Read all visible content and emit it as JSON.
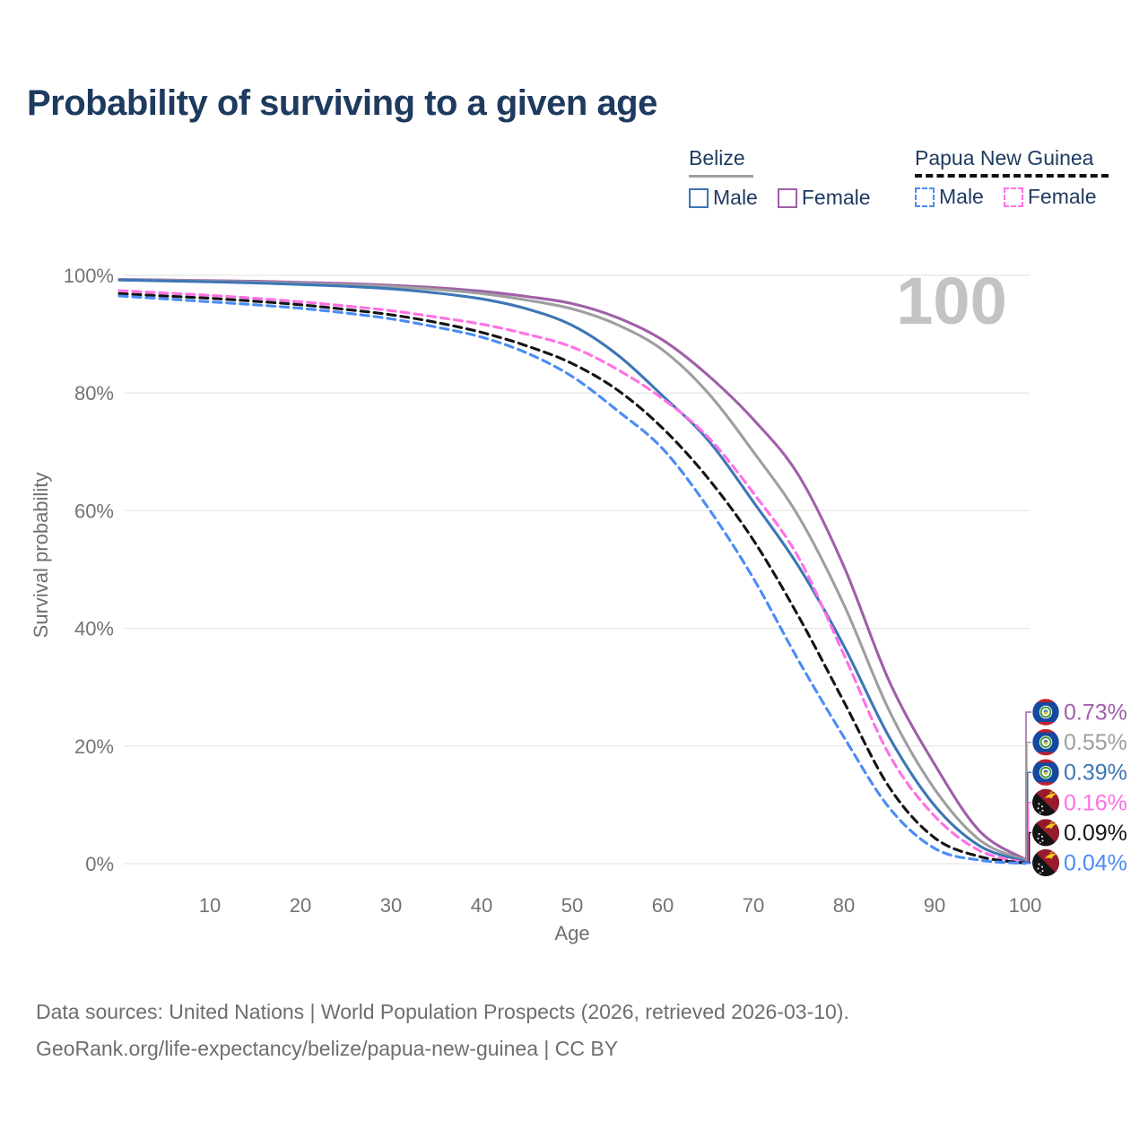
{
  "title": "Probability of surviving to a given age",
  "watermark": "100",
  "legend": {
    "belize": {
      "title": "Belize",
      "male": "Male",
      "female": "Female"
    },
    "png": {
      "title": "Papua New Guinea",
      "male": "Male",
      "female": "Female"
    }
  },
  "axes": {
    "x_label": "Age",
    "y_label": "Survival probability",
    "x_ticks": [
      10,
      20,
      30,
      40,
      50,
      60,
      70,
      80,
      90,
      100
    ],
    "y_ticks": [
      "0%",
      "20%",
      "40%",
      "60%",
      "80%",
      "100%"
    ]
  },
  "footer": {
    "line1": "Data sources: United Nations | World Population Prospects (2026, retrieved 2026-03-10).",
    "line2": "GeoRank.org/life-expectancy/belize/papua-new-guinea | CC BY"
  },
  "colors": {
    "title_text": "#1e3a5f",
    "tick_text": "#737373",
    "grid": "#e8e8e8",
    "watermark": "#c3c3c3",
    "belize_underline": "#9e9e9e",
    "png_underline": "#111111",
    "belize_male": "#3d76b5",
    "belize_female": "#a05fa8",
    "belize_total": "#9e9e9e",
    "png_male": "#4a8cf5",
    "png_female": "#ff70e5",
    "png_total": "#141414"
  },
  "chart_data": {
    "type": "line",
    "title": "Probability of surviving to a given age",
    "xlabel": "Age",
    "ylabel": "Survival probability",
    "xlim": [
      0,
      100
    ],
    "ylim": [
      0,
      100
    ],
    "grid": "horizontal",
    "legend_position": "top-right",
    "x": [
      0,
      5,
      10,
      15,
      20,
      25,
      30,
      35,
      40,
      45,
      50,
      55,
      60,
      65,
      70,
      75,
      80,
      85,
      90,
      95,
      100
    ],
    "series": [
      {
        "name": "Belize Female",
        "country": "Belize",
        "color": "#a05fa8",
        "dash": false,
        "flag": "belize",
        "end_label": "0.73%",
        "end_value": 0.73,
        "values": [
          99.3,
          99.2,
          99.1,
          99.0,
          98.8,
          98.6,
          98.3,
          97.9,
          97.3,
          96.4,
          95.2,
          92.8,
          89.0,
          83.0,
          75.5,
          66.0,
          50.5,
          31.0,
          16.9,
          5.5,
          0.73
        ]
      },
      {
        "name": "Belize (both sexes)",
        "country": "Belize",
        "color": "#9e9e9e",
        "dash": false,
        "flag": "belize",
        "end_label": "0.55%",
        "end_value": 0.55,
        "values": [
          99.25,
          99.15,
          99.0,
          98.85,
          98.65,
          98.4,
          98.1,
          97.6,
          96.9,
          95.8,
          94.3,
          91.6,
          87.3,
          80.0,
          70.0,
          59.0,
          44.0,
          26.0,
          12.7,
          4.0,
          0.55
        ]
      },
      {
        "name": "Belize Male",
        "country": "Belize",
        "color": "#3d76b5",
        "dash": false,
        "flag": "belize",
        "end_label": "0.39%",
        "end_value": 0.39,
        "values": [
          99.2,
          99.05,
          98.9,
          98.7,
          98.45,
          98.15,
          97.7,
          97.0,
          96.0,
          94.3,
          91.5,
          86.5,
          79.5,
          72.0,
          61.5,
          50.5,
          37.0,
          21.5,
          9.9,
          3.0,
          0.39
        ]
      },
      {
        "name": "Papua New Guinea Female",
        "country": "Papua New Guinea",
        "color": "#ff70e5",
        "dash": true,
        "flag": "png",
        "end_label": "0.16%",
        "end_value": 0.16,
        "values": [
          97.4,
          97.0,
          96.6,
          96.1,
          95.5,
          94.8,
          94.0,
          92.9,
          91.7,
          90.0,
          87.8,
          84.0,
          79.0,
          72.5,
          63.0,
          52.0,
          35.5,
          18.5,
          8.1,
          2.2,
          0.16
        ]
      },
      {
        "name": "Papua New Guinea (both sexes)",
        "country": "Papua New Guinea",
        "color": "#141414",
        "dash": true,
        "flag": "png",
        "end_label": "0.09%",
        "end_value": 0.09,
        "values": [
          96.9,
          96.5,
          96.1,
          95.6,
          95.0,
          94.2,
          93.3,
          92.0,
          90.3,
          88.0,
          85.0,
          80.5,
          74.0,
          65.5,
          55.0,
          42.0,
          27.5,
          13.0,
          4.4,
          1.2,
          0.09
        ]
      },
      {
        "name": "Papua New Guinea Male",
        "country": "Papua New Guinea",
        "color": "#4a8cf5",
        "dash": true,
        "flag": "png",
        "end_label": "0.04%",
        "end_value": 0.04,
        "values": [
          96.5,
          96.0,
          95.5,
          95.0,
          94.4,
          93.6,
          92.6,
          91.2,
          89.5,
          86.8,
          82.8,
          77.0,
          70.5,
          60.5,
          48.5,
          34.5,
          21.5,
          9.5,
          2.6,
          0.6,
          0.04
        ]
      }
    ]
  }
}
